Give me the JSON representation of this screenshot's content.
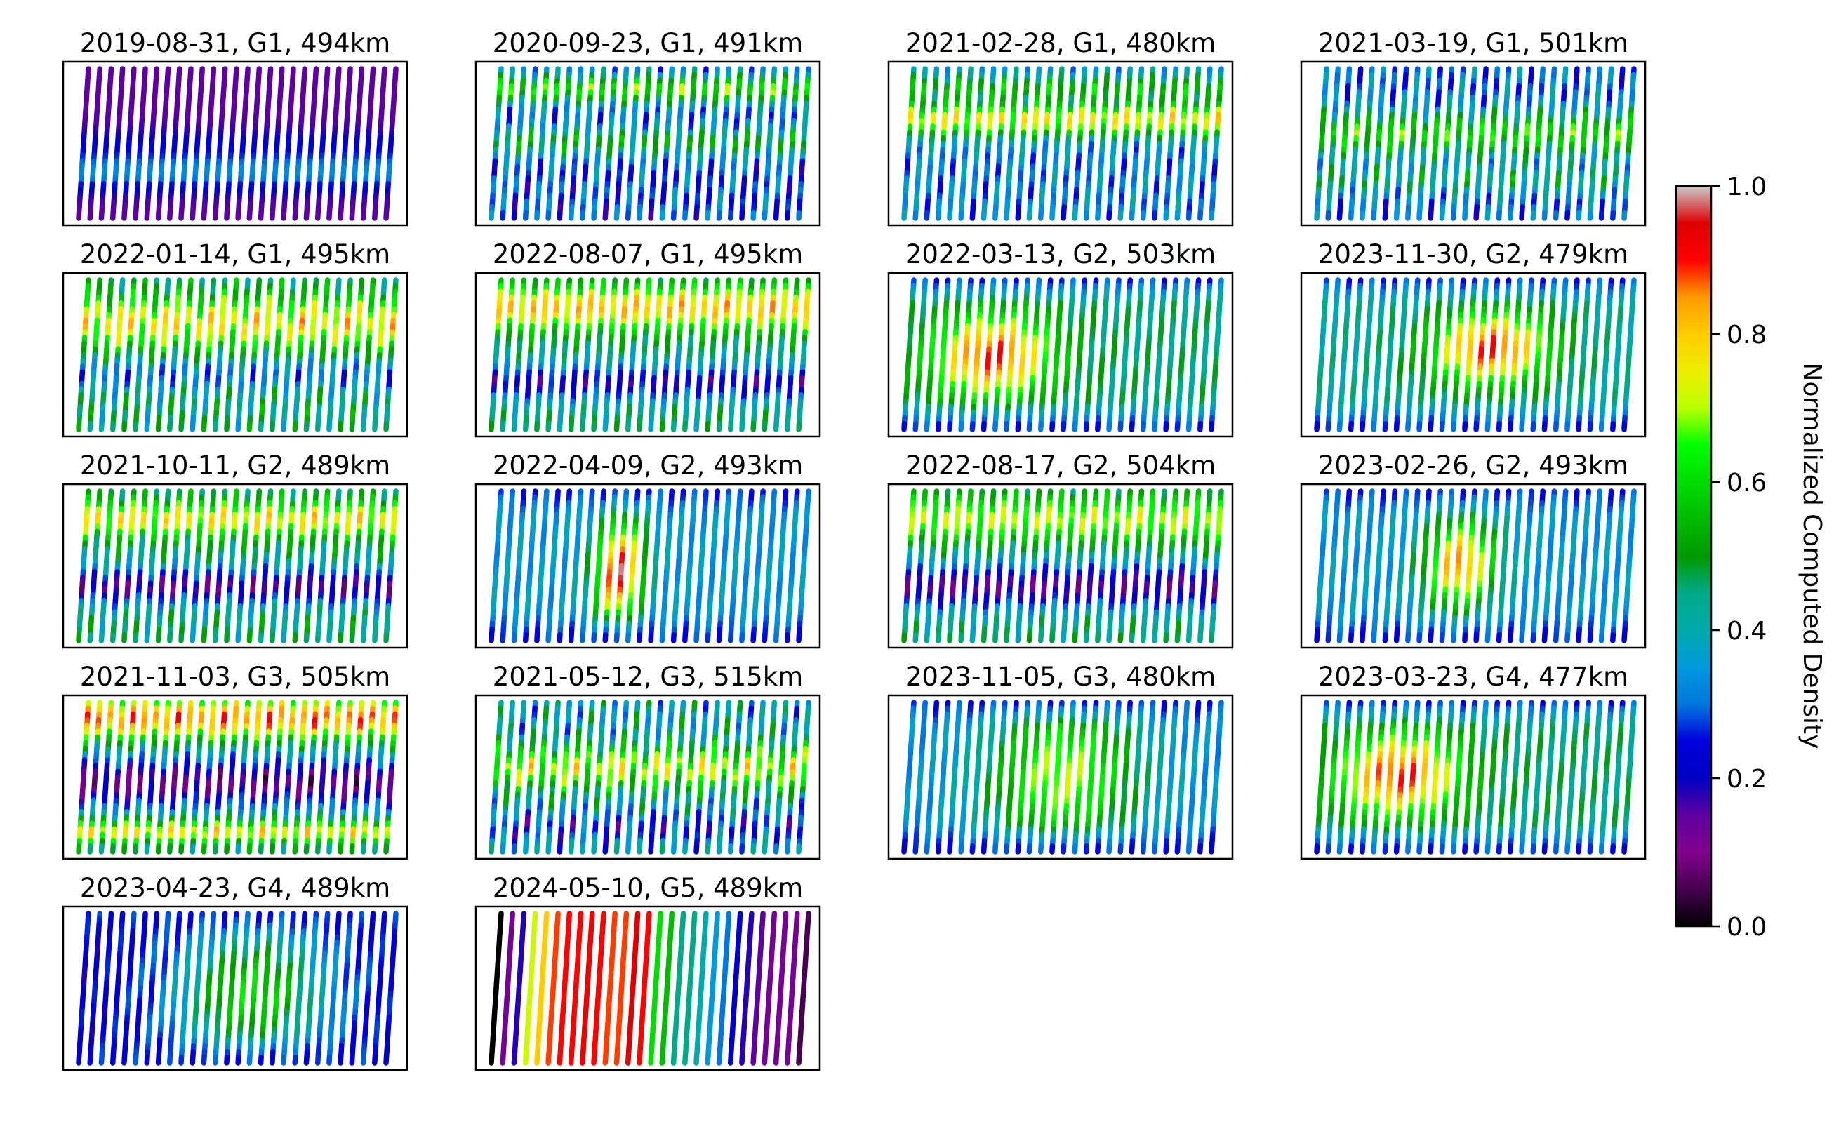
{
  "chart_data": {
    "type": "heatmap",
    "colormap": "nipy_spectral",
    "colorbar": {
      "label": "Normalized Computed Density",
      "ticks": [
        "0.0",
        "0.2",
        "0.4",
        "0.6",
        "0.8",
        "1.0"
      ],
      "range": [
        0,
        1
      ]
    },
    "grid": false,
    "panels": [
      {
        "title": "2019-08-31, G1, 494km",
        "pattern": "bands",
        "params": {
          "base": 0.15,
          "bands": [
            [
              0.55,
              0.22,
              0.12
            ],
            [
              0.7,
              0.33,
              0.12
            ]
          ]
        }
      },
      {
        "title": "2020-09-23, G1, 491km",
        "pattern": "bands",
        "params": {
          "base": 0.28,
          "bands": [
            [
              0.15,
              0.62,
              0.1
            ],
            [
              0.5,
              0.5,
              0.1
            ]
          ],
          "noise": 0.12
        }
      },
      {
        "title": "2021-02-28, G1, 480km",
        "pattern": "bands",
        "params": {
          "base": 0.32,
          "bands": [
            [
              0.35,
              0.75,
              0.12
            ],
            [
              0.15,
              0.55,
              0.1
            ]
          ],
          "noise": 0.1
        }
      },
      {
        "title": "2021-03-19, G1, 501km",
        "pattern": "bands",
        "params": {
          "base": 0.3,
          "bands": [
            [
              0.45,
              0.6,
              0.15
            ],
            [
              0.75,
              0.45,
              0.1
            ]
          ],
          "noise": 0.12
        }
      },
      {
        "title": "2022-01-14, G1, 495km",
        "pattern": "bands",
        "params": {
          "base": 0.45,
          "bands": [
            [
              0.3,
              0.75,
              0.18
            ],
            [
              0.65,
              0.3,
              0.1
            ]
          ],
          "noise": 0.12
        }
      },
      {
        "title": "2022-08-07, G1, 495km",
        "pattern": "bands",
        "params": {
          "base": 0.45,
          "bands": [
            [
              0.2,
              0.8,
              0.15
            ],
            [
              0.7,
              0.2,
              0.12
            ]
          ],
          "noise": 0.08
        }
      },
      {
        "title": "2022-03-13, G2, 503km",
        "pattern": "blob",
        "params": {
          "base": 0.45,
          "cx": 0.27,
          "cy": 0.52,
          "rx": 0.2,
          "ry": 0.28,
          "peak": 0.9
        }
      },
      {
        "title": "2023-11-30, G2, 479km",
        "pattern": "blob",
        "params": {
          "base": 0.42,
          "cx": 0.55,
          "cy": 0.47,
          "rx": 0.2,
          "ry": 0.25,
          "peak": 0.9
        }
      },
      {
        "title": "2021-10-11, G2, 489km",
        "pattern": "bands",
        "params": {
          "base": 0.45,
          "bands": [
            [
              0.2,
              0.75,
              0.12
            ],
            [
              0.65,
              0.15,
              0.12
            ]
          ],
          "noise": 0.1
        }
      },
      {
        "title": "2022-04-09, G2, 493km",
        "pattern": "blob",
        "params": {
          "base": 0.35,
          "cx": 0.4,
          "cy": 0.55,
          "rx": 0.08,
          "ry": 0.35,
          "peak": 0.95
        }
      },
      {
        "title": "2022-08-17, G2, 504km",
        "pattern": "bands",
        "params": {
          "base": 0.45,
          "bands": [
            [
              0.2,
              0.7,
              0.15
            ],
            [
              0.65,
              0.15,
              0.15
            ]
          ],
          "noise": 0.08
        }
      },
      {
        "title": "2023-02-26, G2, 493km",
        "pattern": "blob",
        "params": {
          "base": 0.35,
          "cx": 0.45,
          "cy": 0.5,
          "rx": 0.12,
          "ry": 0.3,
          "peak": 0.85
        }
      },
      {
        "title": "2021-11-03, G3, 505km",
        "pattern": "bands",
        "params": {
          "base": 0.4,
          "bands": [
            [
              0.12,
              0.85,
              0.15
            ],
            [
              0.55,
              0.12,
              0.15
            ],
            [
              0.88,
              0.75,
              0.08
            ]
          ],
          "noise": 0.1
        }
      },
      {
        "title": "2021-05-12, G3, 515km",
        "pattern": "bands",
        "params": {
          "base": 0.38,
          "bands": [
            [
              0.45,
              0.7,
              0.15
            ],
            [
              0.85,
              0.25,
              0.1
            ]
          ],
          "noise": 0.15
        }
      },
      {
        "title": "2023-11-05, G3, 480km",
        "pattern": "blob",
        "params": {
          "base": 0.33,
          "cx": 0.5,
          "cy": 0.5,
          "rx": 0.25,
          "ry": 0.5,
          "peak": 0.7
        }
      },
      {
        "title": "2023-03-23, G4, 477km",
        "pattern": "blob",
        "params": {
          "base": 0.45,
          "cx": 0.25,
          "cy": 0.5,
          "rx": 0.2,
          "ry": 0.28,
          "peak": 0.9
        }
      },
      {
        "title": "2023-04-23, G4, 489km",
        "pattern": "blob",
        "params": {
          "base": 0.22,
          "cx": 0.55,
          "cy": 0.55,
          "rx": 0.25,
          "ry": 0.45,
          "peak": 0.6
        }
      },
      {
        "title": "2024-05-10, G5, 489km",
        "pattern": "stripe",
        "params": {
          "cols": [
            0.0,
            0.12,
            0.18,
            0.72,
            0.8,
            0.88,
            0.9,
            0.9,
            0.92,
            0.9,
            0.88,
            0.88,
            0.95,
            0.9,
            0.6,
            0.55,
            0.45,
            0.45,
            0.4,
            0.35,
            0.3,
            0.22,
            0.18,
            0.15,
            0.12,
            0.12,
            0.12,
            0.05
          ]
        }
      }
    ]
  }
}
